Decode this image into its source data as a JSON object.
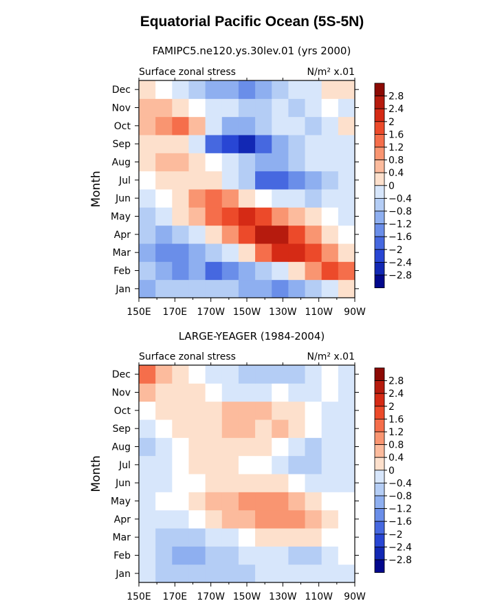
{
  "figure": {
    "title": "Equatorial Pacific Ocean (5S-5N)"
  },
  "chart_data": [
    {
      "type": "heatmap",
      "title": "FAMIPC5.ne120.ys.30lev.01 (yrs 2000)",
      "subtitle_left": "Surface zonal stress",
      "units": "N/m² x.01",
      "xlabel": "",
      "ylabel": "Month",
      "x_ticks": [
        "150E",
        "170E",
        "170W",
        "150W",
        "130W",
        "110W",
        "90W"
      ],
      "y_ticks": [
        "Jan",
        "Feb",
        "Mar",
        "Apr",
        "May",
        "Jun",
        "Jul",
        "Aug",
        "Sep",
        "Oct",
        "Nov",
        "Dec"
      ],
      "xlim": [
        150,
        270
      ],
      "colorbar_levels": [
        "2.8",
        "2.4",
        "2",
        "1.6",
        "1.2",
        "0.8",
        "0.4",
        "0",
        "−0.4",
        "−0.8",
        "−1.2",
        "−1.6",
        "−2",
        "−2.4",
        "−2.8"
      ],
      "columns": [
        "150E",
        "160E",
        "170E",
        "180",
        "170W",
        "160W",
        "150W",
        "140W",
        "130W",
        "120W",
        "110W",
        "100W",
        "90W"
      ],
      "values": [
        [
          -1.2,
          -0.8,
          -0.8,
          -0.8,
          -0.8,
          -0.8,
          -1.2,
          -1.2,
          -1.6,
          -1.2,
          -0.8,
          -0.4,
          0.4
        ],
        [
          -0.8,
          -1.2,
          -1.6,
          -1.2,
          -2.0,
          -1.6,
          -1.2,
          -0.8,
          -0.4,
          0.4,
          1.2,
          2.0,
          1.6
        ],
        [
          -1.2,
          -1.6,
          -1.6,
          -1.2,
          -0.8,
          -0.4,
          0.4,
          1.6,
          2.4,
          2.4,
          2.0,
          1.2,
          0.4
        ],
        [
          -0.8,
          -1.2,
          -0.8,
          -0.4,
          0.4,
          1.2,
          2.0,
          2.8,
          2.8,
          2.0,
          1.2,
          0.4,
          0.0
        ],
        [
          -0.8,
          -0.4,
          0.4,
          0.8,
          1.6,
          2.0,
          2.4,
          2.0,
          1.2,
          0.8,
          0.4,
          0.0,
          -0.4
        ],
        [
          -0.4,
          0.0,
          0.4,
          1.2,
          1.6,
          1.2,
          0.4,
          0.0,
          -0.4,
          -0.4,
          -0.8,
          -0.4,
          -0.4
        ],
        [
          0.0,
          0.4,
          0.4,
          0.4,
          0.4,
          -0.4,
          -0.8,
          -2.0,
          -2.0,
          -1.6,
          -1.2,
          -0.8,
          -0.4
        ],
        [
          0.4,
          0.8,
          0.8,
          0.4,
          0.0,
          -0.4,
          -0.8,
          -1.2,
          -1.2,
          -0.8,
          -0.4,
          -0.4,
          -0.4
        ],
        [
          0.4,
          0.4,
          0.4,
          -0.4,
          -2.0,
          -2.4,
          -2.8,
          -2.0,
          -1.2,
          -0.8,
          -0.4,
          -0.4,
          -0.4
        ],
        [
          0.8,
          1.2,
          1.6,
          0.8,
          -0.4,
          -1.2,
          -1.2,
          -0.8,
          -0.4,
          -0.4,
          -0.8,
          -0.4,
          0.4
        ],
        [
          0.8,
          0.8,
          0.4,
          0.0,
          -0.4,
          -0.4,
          -0.8,
          -0.8,
          -0.4,
          -0.8,
          -0.4,
          0.0,
          -0.4
        ],
        [
          0.4,
          0.0,
          -0.4,
          -0.8,
          -1.2,
          -1.2,
          -1.6,
          -1.2,
          -0.8,
          -0.4,
          -0.4,
          0.4,
          0.4
        ]
      ]
    },
    {
      "type": "heatmap",
      "title": "LARGE-YEAGER (1984-2004)",
      "subtitle_left": "Surface zonal stress",
      "units": "N/m² x.01",
      "xlabel": "",
      "ylabel": "Month",
      "x_ticks": [
        "150E",
        "170E",
        "170W",
        "150W",
        "130W",
        "110W",
        "90W"
      ],
      "y_ticks": [
        "Jan",
        "Feb",
        "Mar",
        "Apr",
        "May",
        "Jun",
        "Jul",
        "Aug",
        "Sep",
        "Oct",
        "Nov",
        "Dec"
      ],
      "xlim": [
        150,
        270
      ],
      "colorbar_levels": [
        "2.8",
        "2.4",
        "2",
        "1.6",
        "1.2",
        "0.8",
        "0.4",
        "0",
        "−0.4",
        "−0.8",
        "−1.2",
        "−1.6",
        "−2",
        "−2.4",
        "−2.8"
      ],
      "columns": [
        "150E",
        "160E",
        "170E",
        "180",
        "170W",
        "160W",
        "150W",
        "140W",
        "130W",
        "120W",
        "110W",
        "100W",
        "90W"
      ],
      "values": [
        [
          -0.4,
          -0.8,
          -0.8,
          -0.8,
          -0.8,
          -0.8,
          -0.8,
          -0.4,
          -0.4,
          -0.4,
          -0.4,
          -0.4,
          -0.4
        ],
        [
          -0.4,
          -0.8,
          -1.2,
          -1.2,
          -0.8,
          -0.8,
          -0.4,
          -0.4,
          -0.4,
          -0.8,
          -0.8,
          -0.4,
          0.0
        ],
        [
          -0.4,
          -0.8,
          -0.8,
          -0.8,
          -0.4,
          -0.4,
          0.0,
          0.4,
          0.4,
          0.4,
          0.4,
          0.0,
          0.0
        ],
        [
          -0.4,
          -0.4,
          -0.4,
          0.0,
          0.4,
          0.8,
          0.8,
          1.2,
          1.2,
          1.2,
          0.8,
          0.4,
          0.0
        ],
        [
          -0.4,
          0.0,
          0.0,
          0.4,
          0.8,
          0.8,
          1.2,
          1.2,
          1.2,
          0.8,
          0.4,
          0.0,
          0.0
        ],
        [
          -0.4,
          -0.4,
          0.0,
          0.0,
          0.4,
          0.4,
          0.4,
          0.4,
          0.4,
          0.0,
          -0.4,
          -0.4,
          -0.4
        ],
        [
          -0.4,
          -0.4,
          0.0,
          0.4,
          0.4,
          0.4,
          0.0,
          0.0,
          -0.4,
          -0.8,
          -0.8,
          -0.4,
          -0.4
        ],
        [
          -0.8,
          -0.4,
          0.0,
          0.4,
          0.4,
          0.4,
          0.4,
          0.4,
          0.0,
          -0.4,
          -0.8,
          -0.4,
          -0.4
        ],
        [
          -0.4,
          0.0,
          0.4,
          0.4,
          0.4,
          0.8,
          0.8,
          0.4,
          0.8,
          0.4,
          0.0,
          -0.4,
          -0.4
        ],
        [
          0.0,
          0.4,
          0.4,
          0.4,
          0.4,
          0.8,
          0.8,
          0.8,
          0.4,
          0.4,
          0.0,
          -0.4,
          -0.4
        ],
        [
          0.8,
          0.4,
          0.4,
          0.4,
          0.0,
          -0.4,
          -0.4,
          -0.4,
          0.0,
          -0.4,
          -0.4,
          0.0,
          -0.4
        ],
        [
          1.6,
          0.8,
          0.4,
          0.0,
          -0.4,
          -0.4,
          -0.8,
          -0.8,
          -0.8,
          -0.8,
          -0.4,
          0.0,
          -0.4
        ]
      ]
    }
  ],
  "colors": {
    "positive": [
      "#fde0cc",
      "#fcbb9d",
      "#f99571",
      "#f56e4b",
      "#ec4a2a",
      "#d52a15",
      "#b61b0e",
      "#8c0a04"
    ],
    "zero": "#ffffff",
    "negative": [
      "#d7e6fb",
      "#b4cdf5",
      "#8eaff0",
      "#6a8ee9",
      "#4668e0",
      "#2846d4",
      "#1228b4",
      "#02088c"
    ]
  }
}
